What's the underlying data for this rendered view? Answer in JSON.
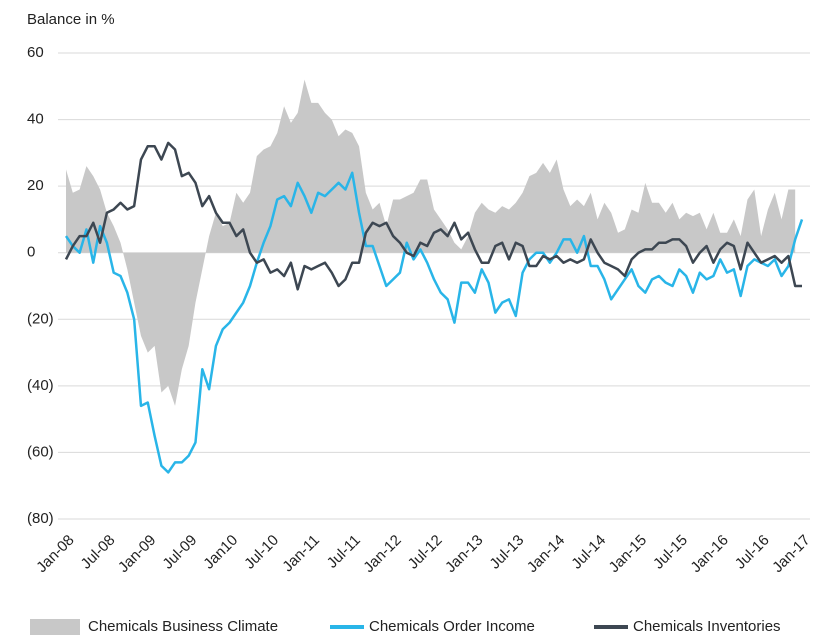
{
  "chart_data": {
    "type": "line",
    "y_label": "Balance in %",
    "categories": [
      "Jan-08",
      null,
      null,
      null,
      null,
      null,
      "Jul-08",
      null,
      null,
      null,
      null,
      null,
      "Jan-09",
      null,
      null,
      null,
      null,
      null,
      "Jul-09",
      null,
      null,
      null,
      null,
      null,
      "Jan10",
      null,
      null,
      null,
      null,
      null,
      "Jul-10",
      null,
      null,
      null,
      null,
      null,
      "Jan-11",
      null,
      null,
      null,
      null,
      null,
      "Jul-11",
      null,
      null,
      null,
      null,
      null,
      "Jan-12",
      null,
      null,
      null,
      null,
      null,
      "Jul-12",
      null,
      null,
      null,
      null,
      null,
      "Jan-13",
      null,
      null,
      null,
      null,
      null,
      "Jul-13",
      null,
      null,
      null,
      null,
      null,
      "Jan-14",
      null,
      null,
      null,
      null,
      null,
      "Jul-14",
      null,
      null,
      null,
      null,
      null,
      "Jan-15",
      null,
      null,
      null,
      null,
      null,
      "Jul-15",
      null,
      null,
      null,
      null,
      null,
      "Jan-16",
      null,
      null,
      null,
      null,
      null,
      "Jul-16",
      null,
      null,
      null,
      null,
      null,
      "Jan-17"
    ],
    "series": [
      {
        "name": "Chemicals Business Climate",
        "kind": "area",
        "color": "#c8c8c8",
        "values": [
          25,
          18,
          19,
          26,
          23,
          19,
          12,
          8,
          3,
          -5,
          -15,
          -25,
          -30,
          -28,
          -42,
          -40,
          -46,
          -35,
          -28,
          -15,
          -5,
          5,
          12,
          8,
          9,
          18,
          15,
          18,
          29,
          31,
          32,
          36,
          44,
          39,
          42,
          52,
          45,
          45,
          42,
          40,
          35,
          37,
          36,
          32,
          18,
          13,
          15,
          8,
          16,
          16,
          17,
          18,
          22,
          22,
          13,
          10,
          7,
          3,
          1,
          5,
          12,
          15,
          13,
          12,
          14,
          13,
          15,
          18,
          23,
          24,
          27,
          24,
          28,
          19,
          14,
          16,
          14,
          18,
          10,
          15,
          12,
          6,
          7,
          13,
          12,
          21,
          15,
          15,
          12,
          15,
          10,
          12,
          11,
          12,
          7,
          12,
          6,
          6,
          10,
          5,
          16,
          19,
          5,
          13,
          18,
          10,
          19,
          19,
          null
        ]
      },
      {
        "name": "Chemicals Order Income",
        "kind": "line",
        "color": "#29b5e8",
        "values": [
          5,
          2,
          0,
          7,
          -3,
          8,
          3,
          -6,
          -7,
          -12,
          -20,
          -46,
          -45,
          -55,
          -64,
          -66,
          -63,
          -63,
          -61,
          -57,
          -35,
          -41,
          -28,
          -23,
          -21,
          -18,
          -15,
          -10,
          -3,
          3,
          8,
          16,
          17,
          14,
          21,
          17,
          12,
          18,
          17,
          19,
          21,
          19,
          24,
          12,
          2,
          2,
          -4,
          -10,
          -8,
          -6,
          3,
          -2,
          1,
          -3,
          -8,
          -12,
          -14,
          -21,
          -9,
          -9,
          -12,
          -5,
          -9,
          -18,
          -15,
          -14,
          -19,
          -6,
          -2,
          0,
          0,
          -3,
          0,
          4,
          4,
          0,
          5,
          -4,
          -4,
          -8,
          -14,
          -11,
          -8,
          -5,
          -10,
          -12,
          -8,
          -7,
          -9,
          -10,
          -5,
          -7,
          -12,
          -6,
          -8,
          -7,
          -2,
          -6,
          -5,
          -13,
          -4,
          -2,
          -3,
          -4,
          -2,
          -7,
          -4,
          4,
          10
        ]
      },
      {
        "name": "Chemicals Inventories",
        "kind": "line",
        "color": "#3d4752",
        "values": [
          -2,
          2,
          5,
          5,
          9,
          3,
          12,
          13,
          15,
          13,
          14,
          28,
          32,
          32,
          28,
          33,
          31,
          23,
          24,
          21,
          14,
          17,
          12,
          9,
          9,
          5,
          7,
          0,
          -3,
          -2,
          -6,
          -5,
          -7,
          -3,
          -11,
          -4,
          -5,
          -4,
          -3,
          -6,
          -10,
          -8,
          -3,
          -3,
          6,
          9,
          8,
          9,
          5,
          3,
          0,
          -1,
          3,
          2,
          6,
          7,
          5,
          9,
          4,
          6,
          1,
          -3,
          -3,
          2,
          3,
          -2,
          3,
          2,
          -4,
          -4,
          -1,
          -2,
          -1,
          -3,
          -2,
          -3,
          -2,
          4,
          0,
          -3,
          -4,
          -5,
          -7,
          -2,
          0,
          1,
          1,
          3,
          3,
          4,
          4,
          2,
          -3,
          0,
          2,
          -3,
          1,
          3,
          2,
          -5,
          3,
          0,
          -3,
          -2,
          -1,
          -3,
          -1,
          -10,
          -10
        ]
      }
    ],
    "ylim": [
      -80,
      60
    ],
    "yticks": [
      {
        "value": -80,
        "label": "(80)"
      },
      {
        "value": -60,
        "label": "(60)"
      },
      {
        "value": -40,
        "label": "(40)"
      },
      {
        "value": -20,
        "label": "(20)"
      },
      0,
      20,
      40,
      60
    ],
    "grid": true,
    "legend": "bottom"
  }
}
